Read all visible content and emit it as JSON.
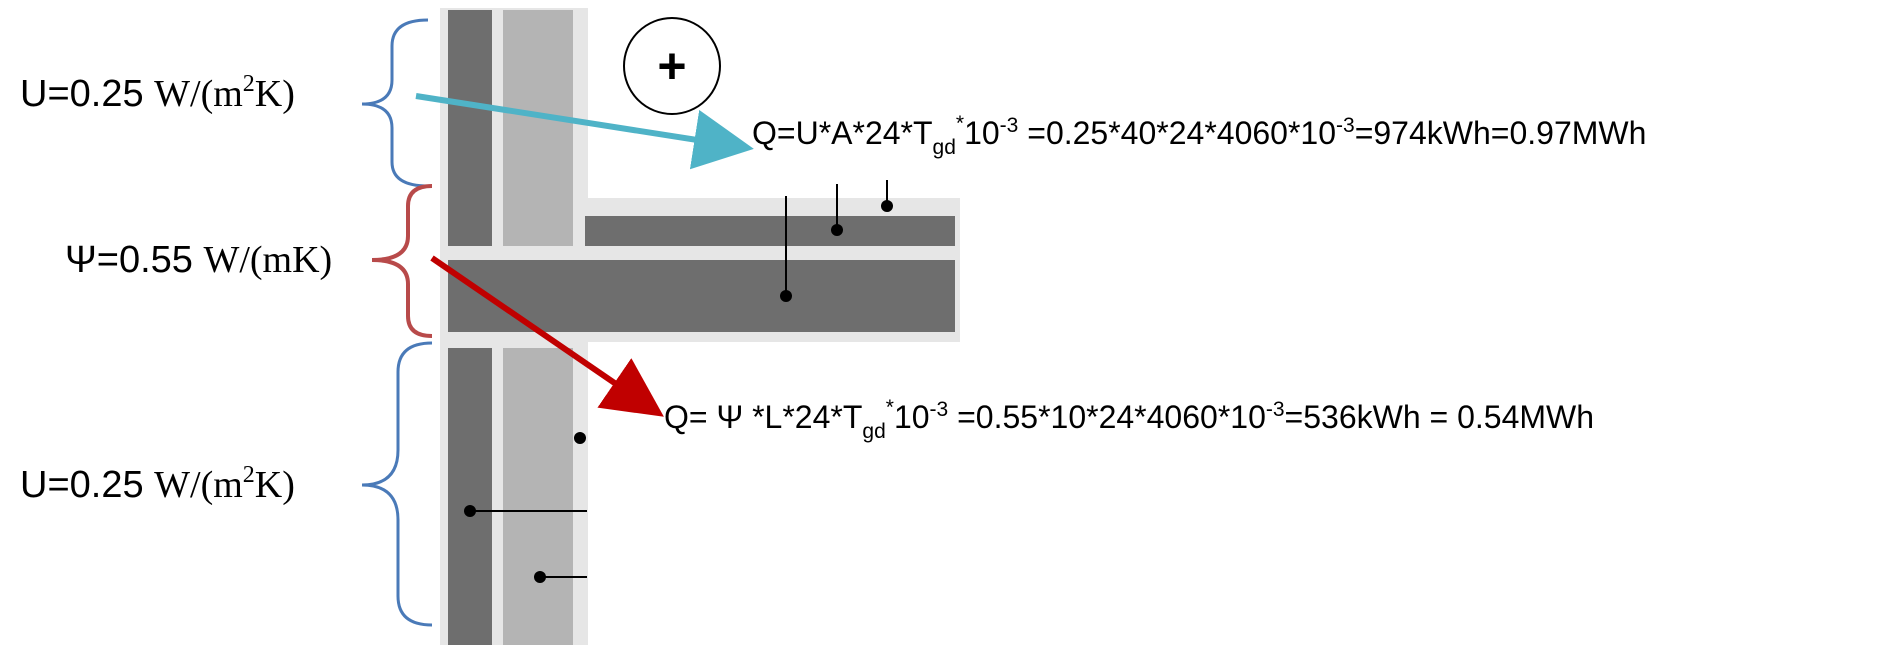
{
  "labels": {
    "u_top": {
      "prefix": "U=0.25 ",
      "unit_pre": "W/(m",
      "unit_sup": "2",
      "unit_post": "K)"
    },
    "psi": {
      "prefix": "Ψ=0.55 ",
      "unit": "W/(mK)"
    },
    "u_bottom": {
      "prefix": "U=0.25 ",
      "unit_pre": "W/(m",
      "unit_sup": "2",
      "unit_post": "K)"
    }
  },
  "equations": {
    "wall": {
      "part1": "Q=U*A*24*T",
      "sub": "gd",
      "sup1": "*",
      "part2": "10",
      "sup2": "-3",
      "part3": " =0.25*40*24*4060*10",
      "sup3": "-3",
      "part4": "=974kWh=0.97MWh"
    },
    "bridge": {
      "part1": "Q= Ψ *L*24*T",
      "sub": "gd",
      "sup1": "*",
      "part2": "10",
      "sup2": "-3",
      "part3": " =0.55*10*24*4060*10",
      "sup3": "-3",
      "part4": "=536kWh = 0.54MWh"
    }
  },
  "symbols": {
    "plus_sign": "+"
  },
  "colors": {
    "brace_u": "#4a7ab8",
    "brace_psi": "#b84a4a",
    "arrow_wall": "#4fb3c7",
    "arrow_bridge": "#c00000",
    "wall_dark": "#6e6e6e",
    "wall_light": "#b4b4b4",
    "wall_bg": "#e6e6e6",
    "text": "#000000"
  },
  "icons": {
    "plus_circle": "plus-circle-icon",
    "arrow_wall": "arrow-icon",
    "arrow_bridge": "arrow-icon"
  }
}
